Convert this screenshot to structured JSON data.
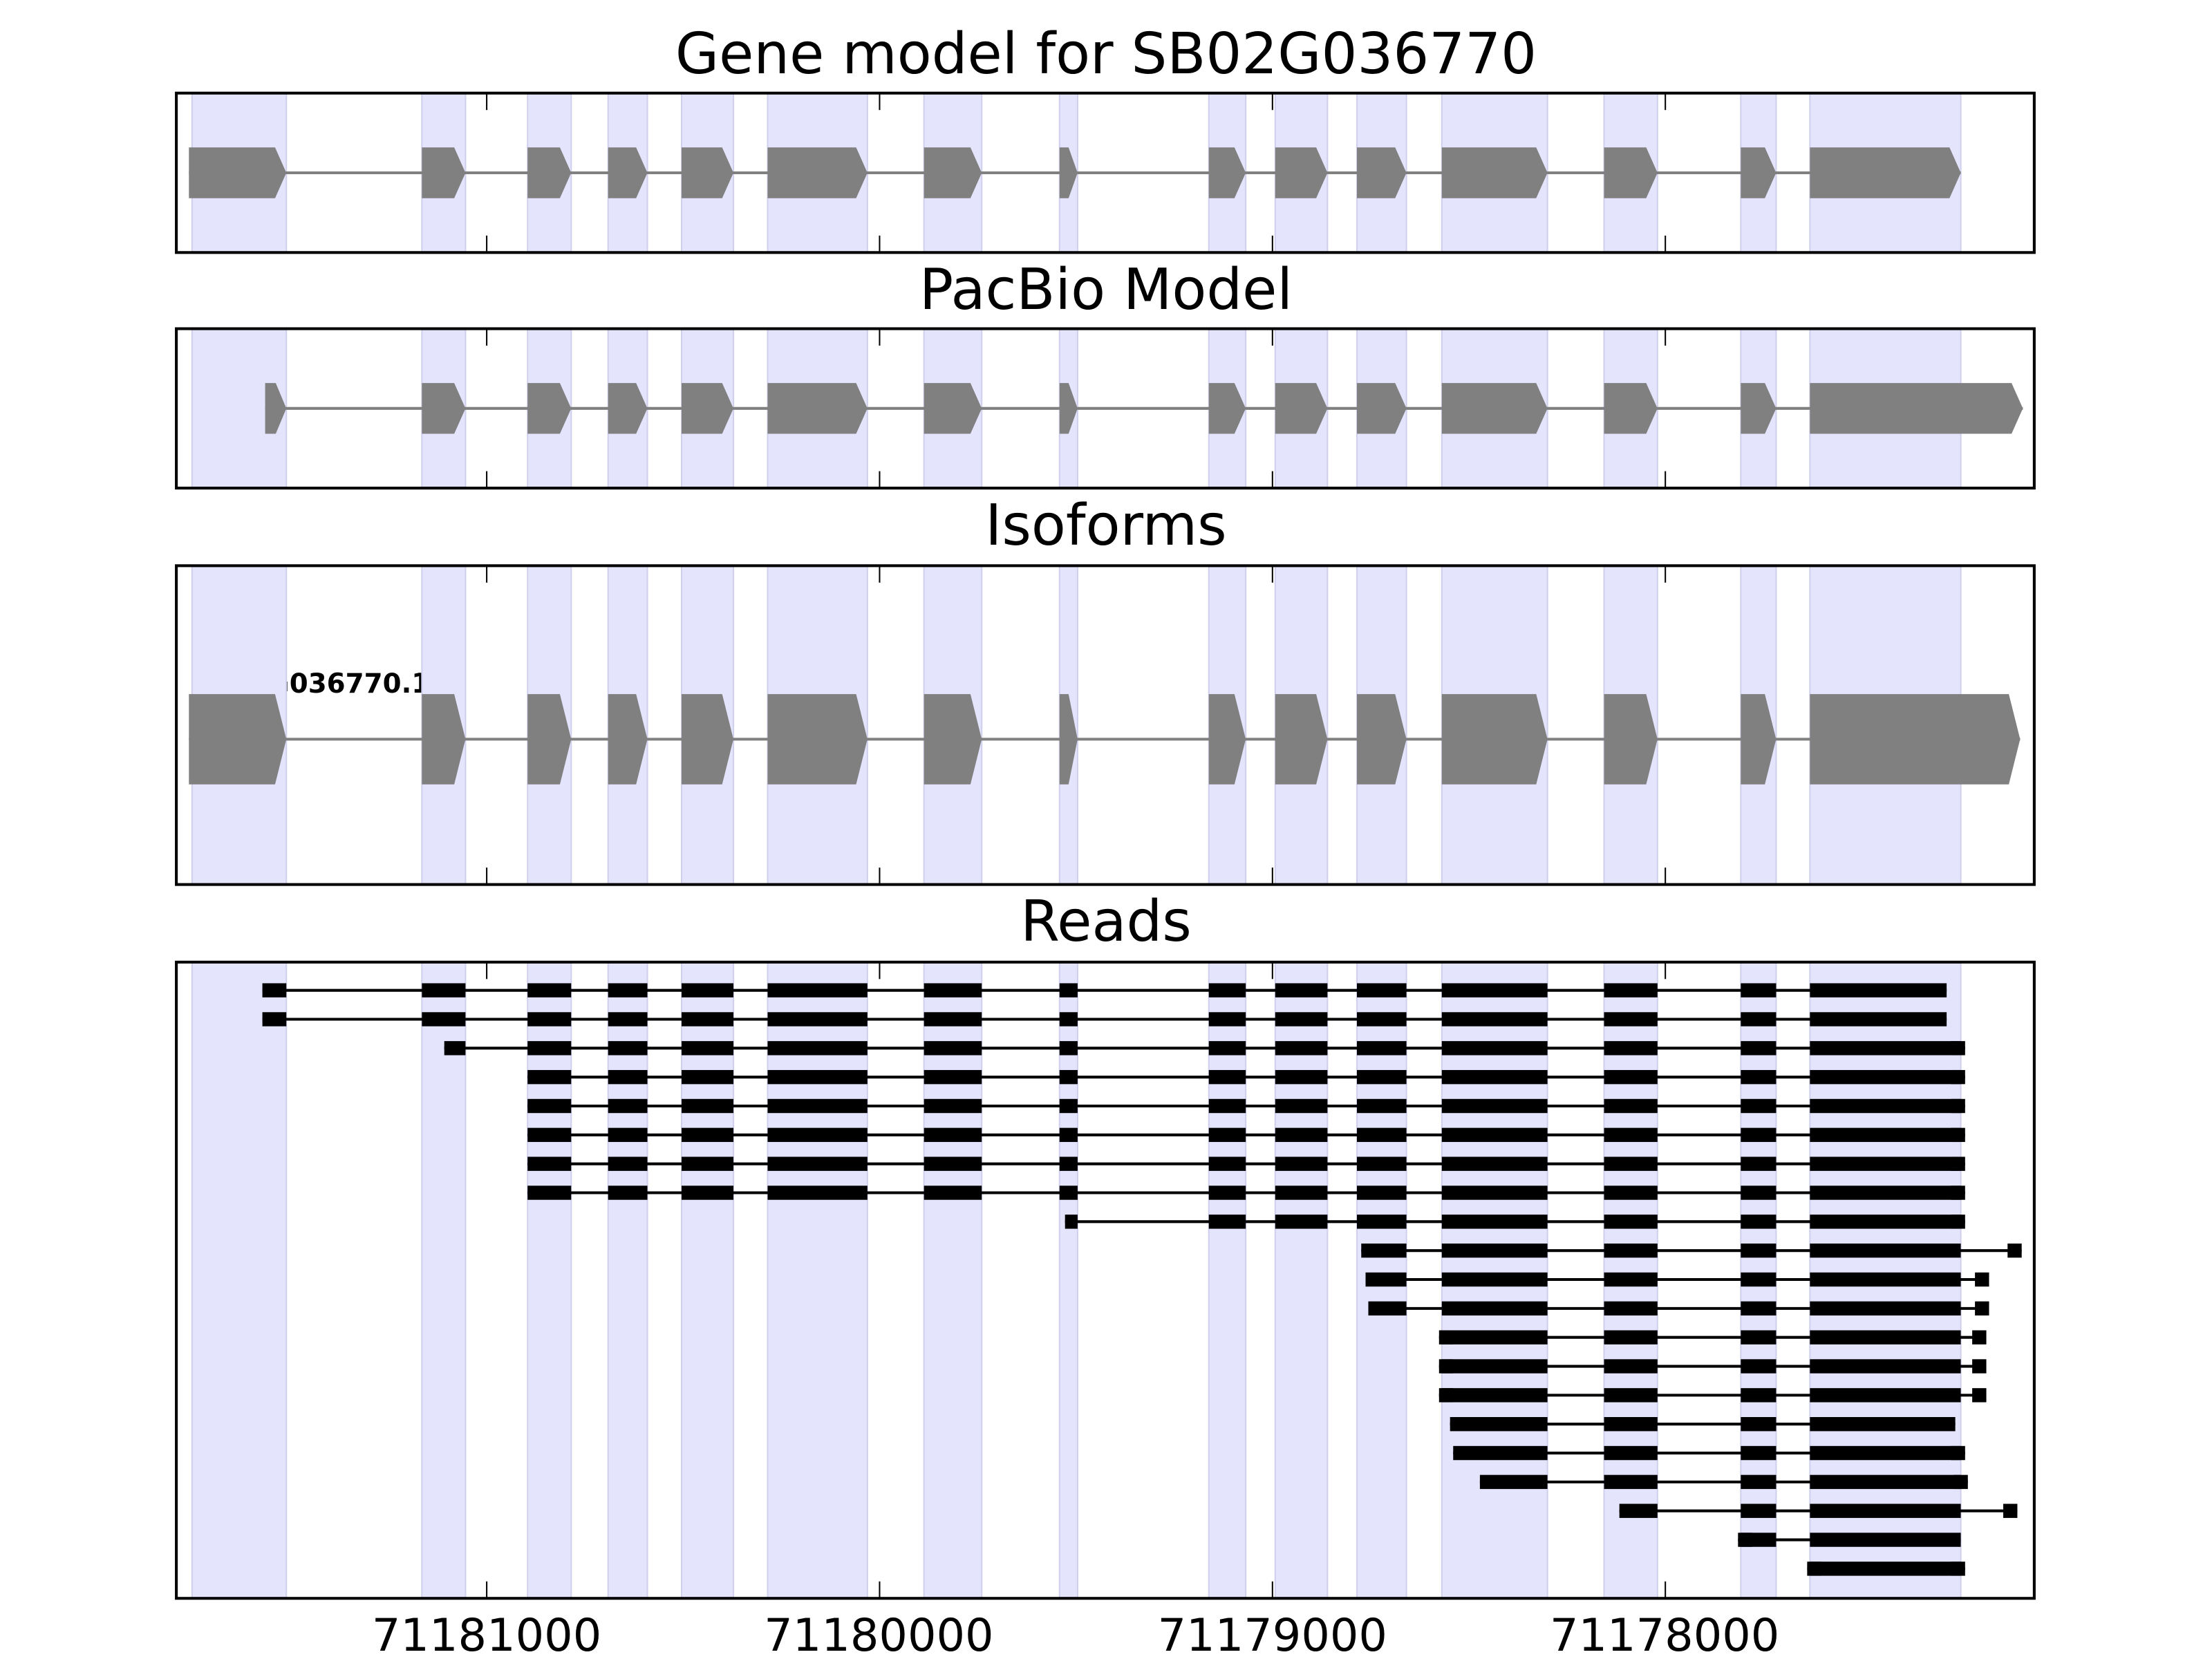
{
  "chart_data": {
    "type": "gene-track",
    "xlim": [
      71181790,
      71177061
    ],
    "x_ticks": [
      71181000,
      71180000,
      71179000,
      71178000
    ],
    "x_tick_labels": [
      "71181000",
      "71180000",
      "71179000",
      "71178000"
    ],
    "colors": {
      "shade": "#e4e4fc",
      "shade_edge": "#d0d0ec",
      "model": "#808080",
      "read": "#000000"
    },
    "exons": [
      [
        71181750,
        71181510
      ],
      [
        71181165,
        71181054
      ],
      [
        71180896,
        71180785
      ],
      [
        71180691,
        71180591
      ],
      [
        71180504,
        71180372
      ],
      [
        71180285,
        71180031
      ],
      [
        71179887,
        71179740
      ],
      [
        71179542,
        71179496
      ],
      [
        71179162,
        71179068
      ],
      [
        71178993,
        71178860
      ],
      [
        71178785,
        71178659
      ],
      [
        71178569,
        71178300
      ],
      [
        71178156,
        71178020
      ],
      [
        71177808,
        71177718
      ],
      [
        71177632,
        71177248
      ]
    ],
    "panels": [
      {
        "title": "Gene model for SB02G036770",
        "kind": "model",
        "start": 71181758,
        "end": 71177248
      },
      {
        "title": "PacBio Model",
        "kind": "model",
        "start": 71181564,
        "end": 71177090
      },
      {
        "title": "Isoforms",
        "kind": "isoform",
        "start": 71181758,
        "end": 71177097,
        "label": "SB02G036770.1"
      },
      {
        "title": "Reads",
        "kind": "reads"
      }
    ],
    "reads": [
      [
        71181571,
        71177284
      ],
      [
        71181571,
        71177284
      ],
      [
        71181108,
        71177237
      ],
      [
        71180896,
        71177237
      ],
      [
        71180896,
        71177237
      ],
      [
        71180896,
        71177237
      ],
      [
        71180896,
        71177237
      ],
      [
        71180896,
        71177237
      ],
      [
        71179528,
        71177237
      ],
      [
        71178774,
        71177093
      ],
      [
        71178763,
        71177176
      ],
      [
        71178756,
        71177176
      ],
      [
        71178576,
        71177183
      ],
      [
        71178576,
        71177183
      ],
      [
        71178576,
        71177183
      ],
      [
        71178548,
        71177262
      ],
      [
        71178540,
        71177237
      ],
      [
        71178472,
        71177230
      ],
      [
        71178117,
        71177104
      ],
      [
        71177815,
        71177248
      ],
      [
        71177639,
        71177237
      ]
    ]
  }
}
